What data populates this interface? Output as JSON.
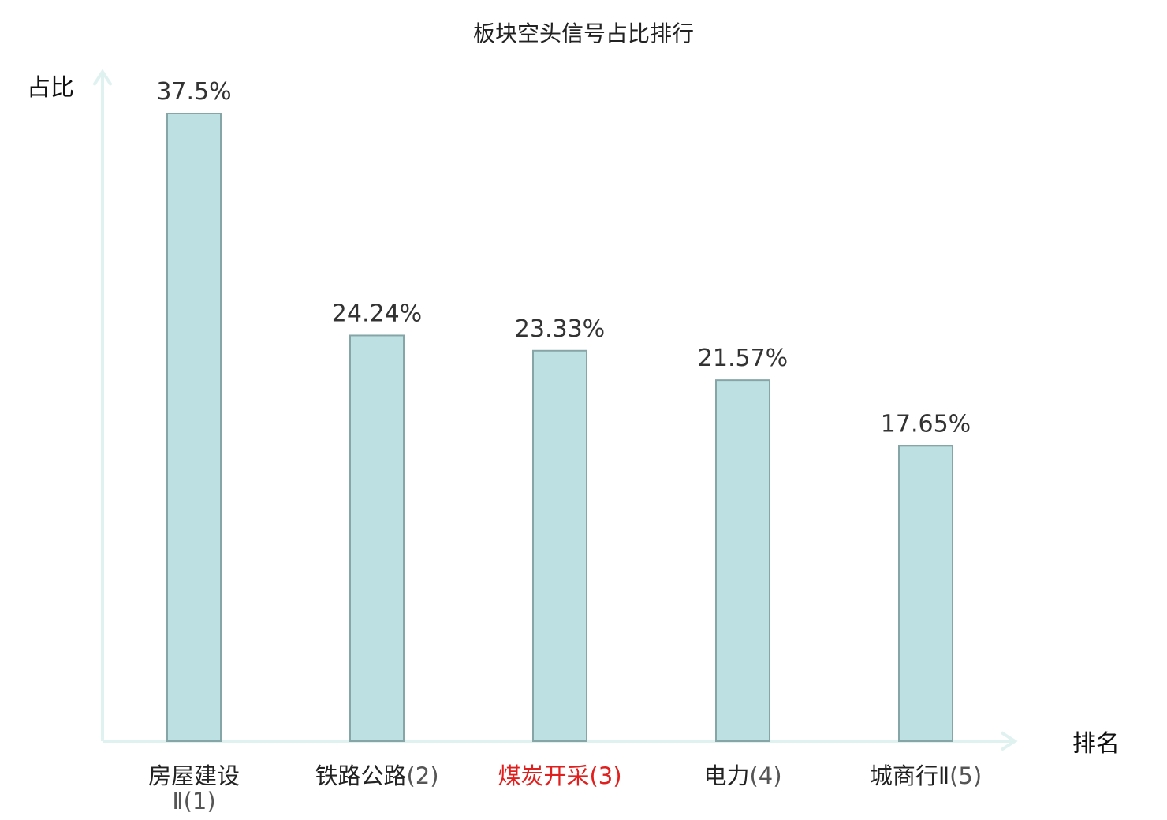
{
  "chart_data": {
    "type": "bar",
    "title": "板块空头信号占比排行",
    "ylabel": "占比",
    "xlabel": "排名",
    "categories": [
      {
        "name": "房屋建设",
        "name_line2": "Ⅱ",
        "rank": "(1)",
        "highlight": false
      },
      {
        "name": "铁路公路",
        "name_line2": "",
        "rank": "(2)",
        "highlight": false
      },
      {
        "name": "煤炭开采",
        "name_line2": "",
        "rank": "(3)",
        "highlight": true
      },
      {
        "name": "电力",
        "name_line2": "",
        "rank": "(4)",
        "highlight": false
      },
      {
        "name": "城商行Ⅱ",
        "name_line2": "",
        "rank": "(5)",
        "highlight": false
      }
    ],
    "values": [
      37.5,
      24.24,
      23.33,
      21.57,
      17.65
    ],
    "value_labels": [
      "37.5%",
      "24.24%",
      "23.33%",
      "21.57%",
      "17.65%"
    ],
    "ylim": [
      0,
      37.5
    ],
    "grid": false,
    "colors": {
      "bar_fill": "#bde0e2",
      "bar_stroke": "#86a5a7",
      "axis": "#e0f2f0",
      "highlight_text": "#e0201e"
    }
  }
}
